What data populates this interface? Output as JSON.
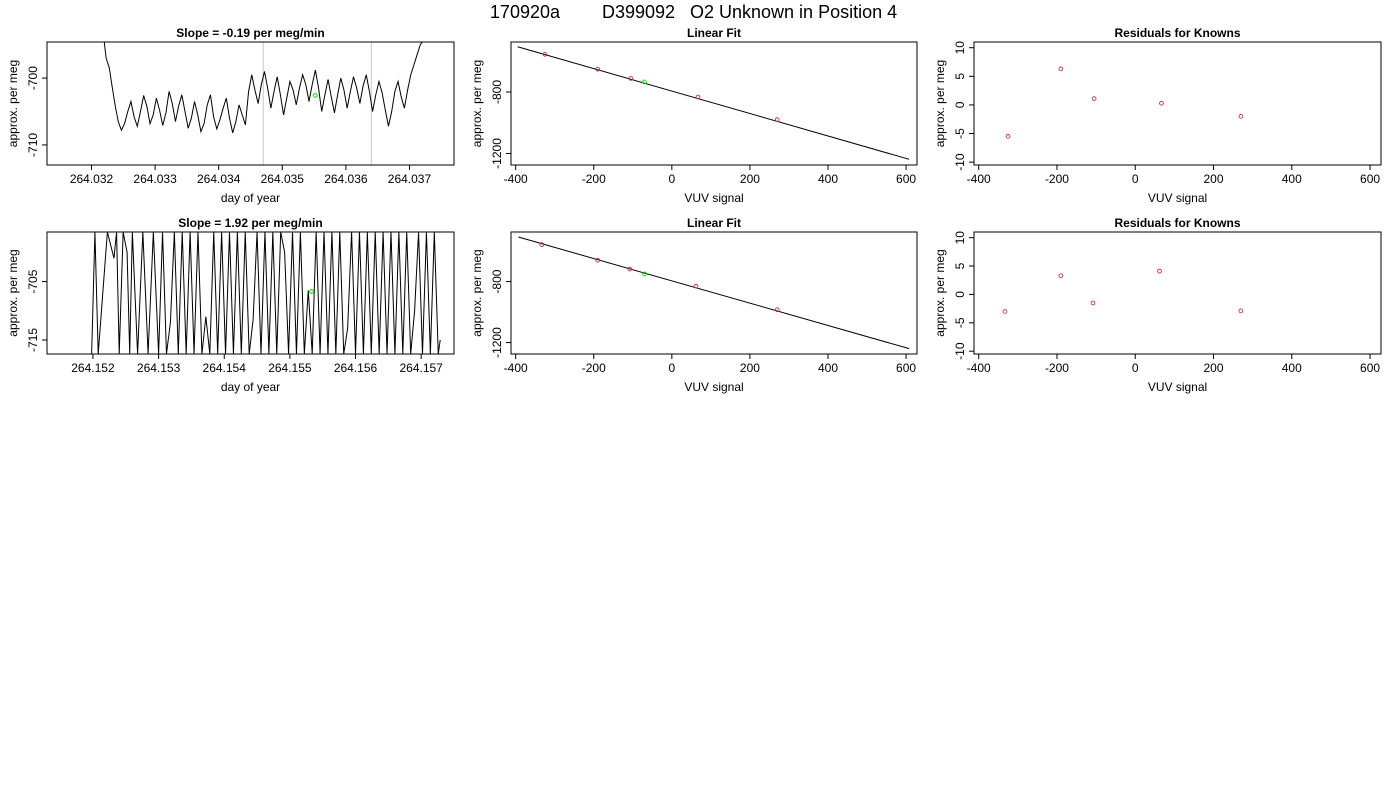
{
  "header": {
    "run_id": "170920a",
    "sample_id": "D399092",
    "description": "O2 Unknown in Position  4"
  },
  "chart_data": [
    {
      "type": "line",
      "title": "Slope =  -0.19  per meg/min",
      "xlabel": "day of year",
      "ylabel": "approx. per meg",
      "xlim": [
        264.0313,
        264.0377
      ],
      "ylim": [
        -713.0,
        -694.6
      ],
      "xticks": [
        "264.032",
        "264.033",
        "264.034",
        "264.035",
        "264.036",
        "264.037"
      ],
      "yticks": [
        "-700",
        "-710"
      ],
      "vlines": [
        264.0347,
        264.0364
      ],
      "highlight_point": {
        "x": 264.03552,
        "y": -702.6,
        "color": "#00dd00"
      },
      "series": [
        {
          "x": [
            264.0322,
            264.03223,
            264.03228,
            264.03232,
            264.03237,
            264.03242,
            264.03247,
            264.03252,
            264.03257,
            264.03262,
            264.03267,
            264.03272,
            264.03277,
            264.03282,
            264.03287,
            264.03292,
            264.03297,
            264.03302,
            264.03307,
            264.03312,
            264.03317,
            264.03322,
            264.03327,
            264.03332,
            264.03337,
            264.03342,
            264.03347,
            264.03352,
            264.03357,
            264.03362,
            264.03367,
            264.03372,
            264.03377,
            264.03382,
            264.03387,
            264.03392,
            264.03397,
            264.03402,
            264.03407,
            264.03412,
            264.03417,
            264.03422,
            264.03427,
            264.03432,
            264.03437,
            264.03442,
            264.03447,
            264.03452,
            264.03457,
            264.03462,
            264.03467,
            264.03472,
            264.03477,
            264.03482,
            264.03487,
            264.03492,
            264.03497,
            264.03502,
            264.03507,
            264.03512,
            264.03517,
            264.03522,
            264.03527,
            264.03532,
            264.03537,
            264.03542,
            264.03547,
            264.03552,
            264.03557,
            264.03562,
            264.03567,
            264.03572,
            264.03577,
            264.03582,
            264.03587,
            264.03592,
            264.03597,
            264.03602,
            264.03607,
            264.03612,
            264.03617,
            264.03622,
            264.03627,
            264.03632,
            264.03637,
            264.03642,
            264.03647,
            264.03652,
            264.03657,
            264.03662,
            264.03667,
            264.03672,
            264.03677,
            264.03682,
            264.03687,
            264.03692,
            264.03697,
            264.03702,
            264.03707,
            264.03712,
            264.03717,
            264.0372,
            264.03722
          ],
          "y": [
            -694.6,
            -697.0,
            -698.5,
            -701.0,
            -704.0,
            -706.5,
            -707.8,
            -706.8,
            -705.0,
            -703.5,
            -705.8,
            -707.2,
            -705.0,
            -702.6,
            -704.2,
            -706.8,
            -705.5,
            -703.0,
            -704.8,
            -707.1,
            -705.2,
            -702.0,
            -703.8,
            -706.5,
            -704.2,
            -702.5,
            -705.0,
            -707.5,
            -706.0,
            -703.5,
            -705.5,
            -708.0,
            -706.8,
            -704.0,
            -702.5,
            -705.8,
            -707.6,
            -706.2,
            -704.5,
            -703.0,
            -706.0,
            -708.2,
            -706.5,
            -704.0,
            -705.5,
            -707.0,
            -702.0,
            -699.5,
            -701.8,
            -703.8,
            -701.0,
            -699.0,
            -701.5,
            -704.5,
            -702.0,
            -699.8,
            -702.5,
            -705.5,
            -703.0,
            -700.5,
            -701.8,
            -704.0,
            -701.5,
            -699.5,
            -701.0,
            -703.5,
            -701.0,
            -698.8,
            -701.5,
            -705.0,
            -702.5,
            -700.2,
            -702.8,
            -705.2,
            -702.5,
            -700.0,
            -701.8,
            -704.5,
            -702.0,
            -699.8,
            -701.5,
            -703.8,
            -701.2,
            -699.5,
            -702.0,
            -705.0,
            -702.5,
            -700.5,
            -702.2,
            -704.8,
            -707.2,
            -705.0,
            -702.0,
            -700.5,
            -702.8,
            -704.5,
            -701.8,
            -699.5,
            -698.0,
            -696.5,
            -695.0,
            -694.6,
            -694.6
          ]
        }
      ]
    },
    {
      "type": "scatter",
      "title": "Linear Fit",
      "xlabel": "VUV signal",
      "ylabel": "approx. per meg",
      "xlim": [
        -412,
        628
      ],
      "ylim": [
        -1275,
        -475
      ],
      "xticks": [
        "-400",
        "-200",
        "0",
        "200",
        "400",
        "600"
      ],
      "yticks": [
        "-800",
        "-1200"
      ],
      "fit_line": {
        "x": [
          -395,
          608
        ],
        "y": [
          -506,
          -1238
        ]
      },
      "series": [
        {
          "x": [
            -325,
            -190,
            -105,
            67,
            270
          ],
          "y": [
            -555,
            -652,
            -712,
            -833,
            -980
          ],
          "color": "#cc3333"
        },
        {
          "x": [
            -70
          ],
          "y": [
            -735
          ],
          "color": "#00dd00"
        }
      ]
    },
    {
      "type": "scatter",
      "title": "Residuals for Knowns",
      "xlabel": "VUV signal",
      "ylabel": "approx. per meg",
      "xlim": [
        -412,
        628
      ],
      "ylim": [
        -10.5,
        11
      ],
      "xticks": [
        "-400",
        "-200",
        "0",
        "200",
        "400",
        "600"
      ],
      "yticks": [
        "-10",
        "-5",
        "0",
        "5",
        "10"
      ],
      "series": [
        {
          "x": [
            -325,
            -190,
            -105,
            67,
            270
          ],
          "y": [
            -5.5,
            6.3,
            1.1,
            0.3,
            -2.0
          ],
          "color": "#cc3333"
        }
      ]
    },
    {
      "type": "line",
      "title": "Slope =  1.92  per meg/min",
      "xlabel": "day of year",
      "ylabel": "approx. per meg",
      "xlim": [
        264.1513,
        264.1575
      ],
      "ylim": [
        -717.4,
        -696.5
      ],
      "xticks": [
        "264.152",
        "264.153",
        "264.154",
        "264.155",
        "264.156",
        "264.157"
      ],
      "yticks": [
        "-705",
        "-715"
      ],
      "highlight_point": {
        "x": 264.15533,
        "y": -706.7,
        "color": "#00dd00"
      },
      "series": [
        {
          "x": [
            264.15198,
            264.15203,
            264.15208,
            264.15222,
            264.15232,
            264.15236,
            264.1524,
            264.15246,
            264.15252,
            264.15256,
            264.1526,
            264.15268,
            264.15276,
            264.15284,
            264.15292,
            264.153,
            264.15306,
            264.15312,
            264.15318,
            264.15324,
            264.1533,
            264.15336,
            264.15342,
            264.15348,
            264.15354,
            264.1536,
            264.15366,
            264.15372,
            264.15378,
            264.15384,
            264.1539,
            264.15396,
            264.15402,
            264.15408,
            264.15414,
            264.1542,
            264.15426,
            264.15432,
            264.15438,
            264.15444,
            264.1545,
            264.15456,
            264.15462,
            264.15468,
            264.15474,
            264.1548,
            264.15486,
            264.15492,
            264.15498,
            264.15504,
            264.1551,
            264.15516,
            264.15522,
            264.15528,
            264.15534,
            264.1554,
            264.15546,
            264.15552,
            264.15558,
            264.15564,
            264.1557,
            264.15576,
            264.15582,
            264.15588,
            264.15594,
            264.156,
            264.15606,
            264.15612,
            264.15618,
            264.15624,
            264.1563,
            264.15636,
            264.15642,
            264.15648,
            264.15654,
            264.1566,
            264.15666,
            264.15672,
            264.15678,
            264.15684,
            264.1569,
            264.15696,
            264.15702,
            264.15708,
            264.15714,
            264.1572,
            264.15726,
            264.15729
          ],
          "y": [
            -717.4,
            -696.5,
            -717.4,
            -696.5,
            -701.0,
            -696.5,
            -717.4,
            -696.5,
            -700.0,
            -717.4,
            -696.5,
            -717.4,
            -696.5,
            -717.4,
            -696.5,
            -717.4,
            -696.5,
            -717.4,
            -712.0,
            -696.5,
            -717.4,
            -696.5,
            -717.4,
            -696.5,
            -717.4,
            -696.5,
            -717.4,
            -711.0,
            -717.4,
            -696.5,
            -717.4,
            -696.5,
            -717.4,
            -696.5,
            -717.4,
            -696.5,
            -717.4,
            -696.5,
            -717.4,
            -711.5,
            -696.5,
            -717.4,
            -696.5,
            -717.4,
            -696.5,
            -717.4,
            -696.5,
            -700.0,
            -717.4,
            -696.5,
            -717.4,
            -696.5,
            -717.4,
            -706.5,
            -717.4,
            -696.5,
            -717.4,
            -696.5,
            -717.4,
            -696.5,
            -717.4,
            -696.5,
            -717.4,
            -713.0,
            -696.5,
            -717.4,
            -696.5,
            -717.4,
            -696.5,
            -717.4,
            -696.5,
            -717.4,
            -696.5,
            -717.4,
            -696.5,
            -717.4,
            -696.5,
            -717.4,
            -696.5,
            -717.4,
            -710.0,
            -696.5,
            -717.4,
            -696.5,
            -717.4,
            -696.5,
            -717.4,
            -715.0
          ]
        }
      ]
    },
    {
      "type": "scatter",
      "title": "Linear Fit",
      "xlabel": "VUV signal",
      "ylabel": "approx. per meg",
      "xlim": [
        -412,
        628
      ],
      "ylim": [
        -1275,
        -475
      ],
      "xticks": [
        "-400",
        "-200",
        "0",
        "200",
        "400",
        "600"
      ],
      "yticks": [
        "-800",
        "-1200"
      ],
      "fit_line": {
        "x": [
          -393,
          608
        ],
        "y": [
          -508,
          -1240
        ]
      },
      "series": [
        {
          "x": [
            -333,
            -190,
            -108,
            62,
            270
          ],
          "y": [
            -558,
            -660,
            -718,
            -830,
            -985
          ],
          "color": "#cc3333"
        },
        {
          "x": [
            -70
          ],
          "y": [
            -750
          ],
          "color": "#00dd00"
        }
      ]
    },
    {
      "type": "scatter",
      "title": "Residuals for Knowns",
      "xlabel": "VUV signal",
      "ylabel": "approx. per meg",
      "xlim": [
        -412,
        628
      ],
      "ylim": [
        -10.5,
        11
      ],
      "xticks": [
        "-400",
        "-200",
        "0",
        "200",
        "400",
        "600"
      ],
      "yticks": [
        "-10",
        "-5",
        "0",
        "5",
        "10"
      ],
      "series": [
        {
          "x": [
            -333,
            -190,
            -108,
            62,
            270
          ],
          "y": [
            -3.0,
            3.3,
            -1.5,
            4.1,
            -2.9
          ],
          "color": "#cc3333"
        }
      ]
    }
  ]
}
